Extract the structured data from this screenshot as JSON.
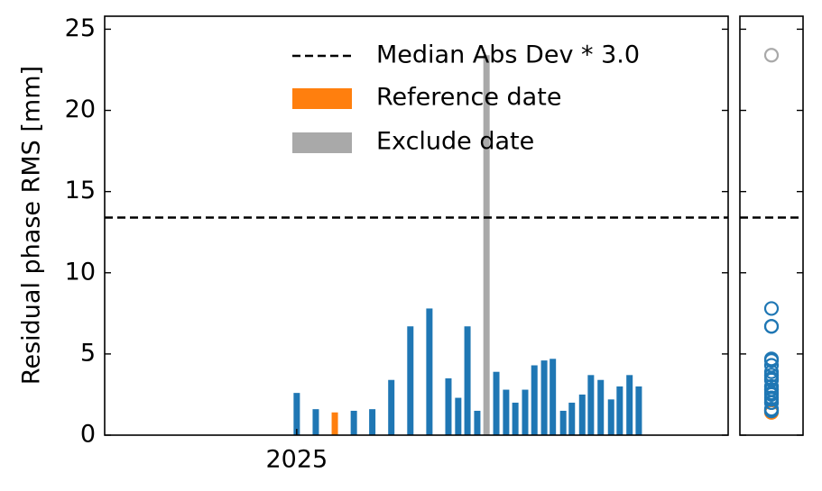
{
  "chart_data": {
    "type": "bar",
    "ylabel": "Residual phase RMS [mm]",
    "x": [
      2025.0,
      2025.033,
      2025.066,
      2025.099,
      2025.131,
      2025.164,
      2025.197,
      2025.23,
      2025.263,
      2025.28,
      2025.296,
      2025.313,
      2025.329,
      2025.346,
      2025.363,
      2025.379,
      2025.396,
      2025.412,
      2025.429,
      2025.444,
      2025.462,
      2025.477,
      2025.495,
      2025.51,
      2025.527,
      2025.545,
      2025.56,
      2025.577,
      2025.593
    ],
    "values": [
      2.6,
      1.6,
      1.4,
      1.5,
      1.6,
      3.4,
      6.7,
      7.8,
      3.5,
      2.3,
      6.7,
      1.5,
      23.4,
      3.9,
      2.8,
      2.0,
      2.8,
      4.3,
      4.6,
      4.7,
      1.5,
      2.0,
      2.5,
      3.7,
      3.4,
      2.2,
      3.0,
      3.7,
      3.0
    ],
    "colors": [
      "#1f77b4",
      "#1f77b4",
      "#ff7f0e",
      "#1f77b4",
      "#1f77b4",
      "#1f77b4",
      "#1f77b4",
      "#1f77b4",
      "#1f77b4",
      "#1f77b4",
      "#1f77b4",
      "#1f77b4",
      "#a9a9a9",
      "#1f77b4",
      "#1f77b4",
      "#1f77b4",
      "#1f77b4",
      "#1f77b4",
      "#1f77b4",
      "#1f77b4",
      "#1f77b4",
      "#1f77b4",
      "#1f77b4",
      "#1f77b4",
      "#1f77b4",
      "#1f77b4",
      "#1f77b4",
      "#1f77b4",
      "#1f77b4"
    ],
    "xlim": [
      2024.667,
      2025.748
    ],
    "xticks": [
      2025
    ],
    "ylim": [
      0,
      25.8
    ],
    "yticks": [
      0,
      5,
      10,
      15,
      20,
      25
    ],
    "threshold": {
      "name": "Median Abs Dev * 3.0",
      "value": 13.4,
      "color": "#000000"
    },
    "legend": [
      {
        "name": "Reference date",
        "color": "#ff7f0e"
      },
      {
        "name": "Exclude date",
        "color": "#a9a9a9"
      }
    ],
    "legend_position": "upper right",
    "grid": false
  }
}
